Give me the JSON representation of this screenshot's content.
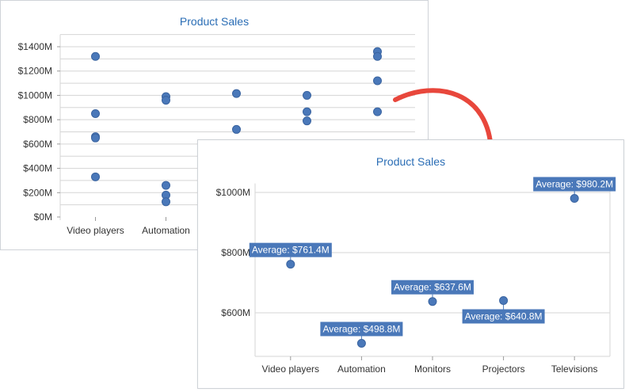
{
  "chart_data": [
    {
      "type": "scatter",
      "title": "Product Sales",
      "categories": [
        "Video players",
        "Automation",
        "Monitors",
        "Projectors",
        "Televisions"
      ],
      "visible_categories": [
        "Video players",
        "Automation"
      ],
      "y_ticks": [
        "$0M",
        "$200M",
        "$400M",
        "$600M",
        "$800M",
        "$1000M",
        "$1200M",
        "$1400M"
      ],
      "ylim": [
        0,
        1400
      ],
      "grid": true,
      "points": [
        {
          "category": "Video players",
          "values": [
            1320,
            850,
            660,
            650,
            330
          ]
        },
        {
          "category": "Automation",
          "values": [
            990,
            960,
            260,
            180,
            125
          ]
        },
        {
          "category": "Monitors",
          "values": [
            1015,
            720
          ]
        },
        {
          "category": "Projectors",
          "values": [
            1000,
            865,
            790
          ]
        },
        {
          "category": "Televisions",
          "values": [
            1360,
            1320,
            1120,
            865
          ]
        }
      ]
    },
    {
      "type": "scatter",
      "title": "Product Sales",
      "categories": [
        "Video players",
        "Automation",
        "Monitors",
        "Projectors",
        "Televisions"
      ],
      "y_ticks": [
        "$600M",
        "$800M",
        "$1000M"
      ],
      "ylim": [
        480,
        1030
      ],
      "grid": true,
      "points": [
        {
          "category": "Video players",
          "value": 761.4,
          "label": "Average: $761.4M"
        },
        {
          "category": "Automation",
          "value": 498.8,
          "label": "Average: $498.8M"
        },
        {
          "category": "Monitors",
          "value": 637.6,
          "label": "Average: $637.6M"
        },
        {
          "category": "Projectors",
          "value": 640.8,
          "label": "Average: $640.8M"
        },
        {
          "category": "Televisions",
          "value": 980.2,
          "label": "Average: $980.2M"
        }
      ]
    }
  ],
  "colors": {
    "point": "#4a78b9",
    "point_stroke": "#3a64a0",
    "label_bg": "#4a78b9",
    "title": "#2a6db5",
    "grid": "#d5d5d5",
    "axis_text": "#333333",
    "arrow": "#e8473c"
  }
}
